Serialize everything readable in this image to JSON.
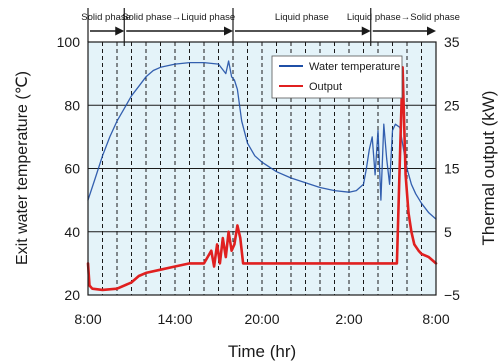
{
  "chart_data": {
    "type": "line",
    "xlabel": "Time (hr)",
    "ylabel_left": "Exit water temperature (℃)",
    "ylabel_right": "Thermal output (kW)",
    "x_ticks": [
      "8:00",
      "14:00",
      "20:00",
      "2:00",
      "8:00"
    ],
    "x_range_hours": [
      0,
      24
    ],
    "ylim_left": [
      20,
      100
    ],
    "y_ticks_left": [
      "20",
      "40",
      "60",
      "80",
      "100"
    ],
    "ylim_right": [
      -5,
      35
    ],
    "y_ticks_right": [
      "−5",
      "5",
      "15",
      "25",
      "35"
    ],
    "grid": true,
    "legend_position": "top-right",
    "phases": [
      {
        "label": "Solid phase",
        "start_hour": 0,
        "end_hour": 2.5
      },
      {
        "label": "Solid phase→Liquid phase",
        "start_hour": 2.5,
        "end_hour": 10
      },
      {
        "label": "Liquid phase",
        "start_hour": 10,
        "end_hour": 19.5
      },
      {
        "label": "Liquid phase→Solid phase",
        "start_hour": 19.5,
        "end_hour": 24
      }
    ],
    "series": [
      {
        "name": "Water temperature",
        "axis": "left",
        "color": "#1f4fa6",
        "x": [
          0,
          0.5,
          1,
          1.5,
          2,
          2.5,
          3,
          3.5,
          4,
          4.5,
          5,
          6,
          7,
          8,
          9,
          9.5,
          9.7,
          9.9,
          10.1,
          10.3,
          10.6,
          11,
          11.5,
          12,
          13,
          14,
          15,
          16,
          17,
          18,
          18.5,
          19,
          19.2,
          19.4,
          19.6,
          19.8,
          20,
          20.2,
          20.4,
          20.6,
          20.8,
          21,
          21.2,
          21.5,
          21.8,
          22,
          22.3,
          22.6,
          23,
          23.5,
          24
        ],
        "values": [
          50,
          57,
          64,
          70,
          75,
          79,
          83,
          86,
          89,
          91,
          92,
          93,
          93.5,
          93.5,
          93,
          90,
          94,
          89,
          88,
          85,
          75,
          68,
          64,
          62,
          59,
          57,
          55.5,
          54,
          53,
          52.5,
          53,
          55,
          60,
          66,
          70,
          58,
          72,
          50,
          74,
          63,
          55,
          72,
          74,
          73,
          65,
          60,
          55,
          52,
          49,
          46,
          44
        ]
      },
      {
        "name": "Output",
        "axis": "right",
        "color": "#e02020",
        "x": [
          0,
          0.1,
          0.3,
          1,
          2,
          3,
          3.5,
          4,
          5,
          6,
          7,
          8,
          8.5,
          8.7,
          8.9,
          9.1,
          9.3,
          9.5,
          9.7,
          9.9,
          10.1,
          10.3,
          10.5,
          10.7,
          11,
          12,
          14,
          16,
          18,
          20,
          21,
          21.3,
          21.5,
          21.7,
          21.9,
          22.1,
          22.3,
          22.5,
          22.8,
          23,
          23.5,
          24
        ],
        "values": [
          0,
          -3.5,
          -4,
          -4.2,
          -4,
          -3,
          -2,
          -1.5,
          -1,
          -0.5,
          0,
          0,
          2,
          -0.5,
          3,
          0,
          4,
          1,
          5,
          2,
          3,
          6,
          4,
          0,
          0,
          0,
          0,
          0,
          0,
          0,
          0,
          0,
          16,
          31,
          14,
          8,
          5,
          3,
          2,
          1.5,
          1,
          0
        ]
      }
    ]
  }
}
